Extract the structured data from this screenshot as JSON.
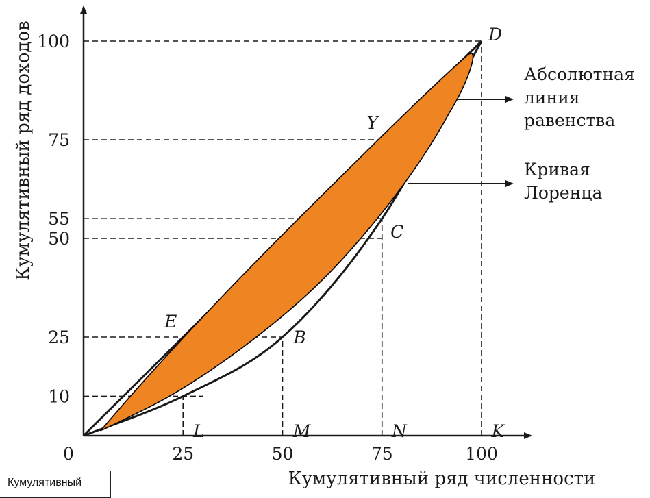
{
  "chart_data": {
    "type": "line",
    "xlabel": "Кумулятивный ряд численности",
    "ylabel": "Кумулятивный ряд доходов",
    "xlim": [
      0,
      100
    ],
    "ylim": [
      0,
      100
    ],
    "x_ticks": [
      "0",
      "25",
      "50",
      "75",
      "100"
    ],
    "y_ticks": [
      "10",
      "25",
      "50",
      "55",
      "75",
      "100"
    ],
    "series": [
      {
        "name": "Абсолютная линия равенства",
        "x": [
          0,
          100
        ],
        "y": [
          0,
          100
        ]
      },
      {
        "name": "Кривая Лоренца",
        "x": [
          0,
          25,
          50,
          75,
          100
        ],
        "y": [
          0,
          10,
          25,
          55,
          100
        ]
      }
    ],
    "points": [
      {
        "label": "D",
        "x": 100,
        "y": 100
      },
      {
        "label": "Y",
        "x": 75,
        "y": 75
      },
      {
        "label": "C",
        "x": 75,
        "y": 55
      },
      {
        "label": "E",
        "x": 25,
        "y": 25
      },
      {
        "label": "B",
        "x": 50,
        "y": 25
      },
      {
        "label": "L",
        "x": 25,
        "y": 0
      },
      {
        "label": "M",
        "x": 50,
        "y": 0
      },
      {
        "label": "N",
        "x": 75,
        "y": 0
      },
      {
        "label": "K",
        "x": 100,
        "y": 0
      }
    ],
    "annotations": {
      "equality_line": [
        "Абсолютная",
        "линия",
        "равенства"
      ],
      "lorenz_curve": [
        "Кривая",
        "Лоренца"
      ]
    },
    "highlight_color": "#ef8422",
    "line_color": "#1a1a1a",
    "grid": false
  },
  "stub_label": "Кумулятивный"
}
